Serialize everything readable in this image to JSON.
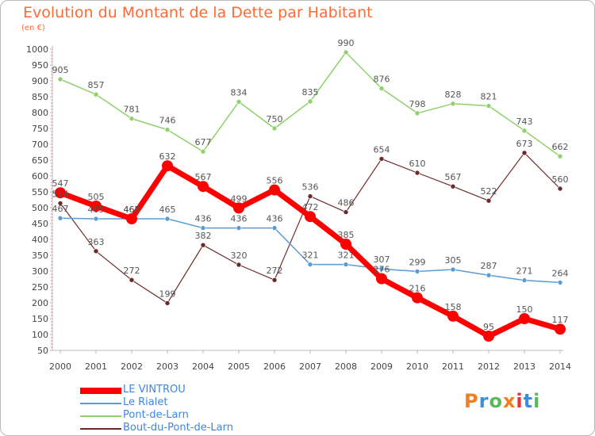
{
  "title": "Evolution du Montant de la Dette par Habitant",
  "unit": "(en €)",
  "colors": {
    "title": "#ff6a33",
    "axis_text": "#444444",
    "label_text": "#555555"
  },
  "logo": {
    "text": "Proxiti",
    "colors": [
      "#f07f1e",
      "#3f8fd8",
      "#5cb85c",
      "#f07f1e",
      "#e3342f",
      "#3f8fd8",
      "#5cb85c"
    ]
  },
  "chart_data": {
    "type": "line",
    "title": "Evolution du Montant de la Dette par Habitant",
    "ylabel": "(en €)",
    "xlabel": "",
    "x": [
      "2000",
      "2001",
      "2002",
      "2003",
      "2004",
      "2005",
      "2006",
      "2007",
      "2008",
      "2009",
      "2010",
      "2011",
      "2012",
      "2013",
      "2014"
    ],
    "ylim": [
      50,
      1000
    ],
    "yticks": [
      50,
      100,
      150,
      200,
      250,
      300,
      350,
      400,
      450,
      500,
      550,
      600,
      650,
      700,
      750,
      800,
      850,
      900,
      950,
      1000
    ],
    "grid": false,
    "legend": "bottom-left",
    "series": [
      {
        "name": "LE VINTROU",
        "color": "#ff0000",
        "width": 7,
        "marker": 7,
        "values": [
          547,
          505,
          465,
          632,
          567,
          499,
          556,
          472,
          385,
          276,
          216,
          158,
          95,
          150,
          117
        ],
        "labels": [
          "547",
          "505",
          "465",
          "632",
          "567",
          "499",
          "556",
          "472",
          "385",
          "276",
          "216",
          "158",
          "95",
          "150",
          "117"
        ]
      },
      {
        "name": "Le Rialet",
        "color": "#5b9bd5",
        "width": 1.5,
        "marker": 3,
        "values": [
          467,
          465,
          465,
          465,
          436,
          436,
          436,
          321,
          321,
          307,
          299,
          305,
          287,
          271,
          264
        ],
        "labels": [
          "467",
          "465",
          "465",
          "465",
          "436",
          "436",
          "436",
          "321",
          "321",
          "307",
          "299",
          "305",
          "287",
          "271",
          "264"
        ]
      },
      {
        "name": "Pont-de-Larn",
        "color": "#8fd16b",
        "width": 1.5,
        "marker": 3,
        "values": [
          905,
          857,
          781,
          746,
          677,
          834,
          750,
          835,
          990,
          876,
          798,
          828,
          821,
          743,
          662
        ],
        "labels": [
          "905",
          "857",
          "781",
          "746",
          "677",
          "834",
          "750",
          "835",
          "990",
          "876",
          "798",
          "828",
          "821",
          "743",
          "662"
        ]
      },
      {
        "name": "Bout-du-Pont-de-Larn",
        "color": "#6b2a2a",
        "width": 1.2,
        "marker": 3,
        "values": [
          514,
          363,
          272,
          199,
          382,
          320,
          272,
          536,
          486,
          654,
          610,
          567,
          522,
          673,
          560
        ],
        "labels": [
          "514",
          "363",
          "272",
          "199",
          "382",
          "320",
          "272",
          "536",
          "486",
          "654",
          "610",
          "567",
          "522",
          "673",
          "560"
        ]
      }
    ]
  }
}
